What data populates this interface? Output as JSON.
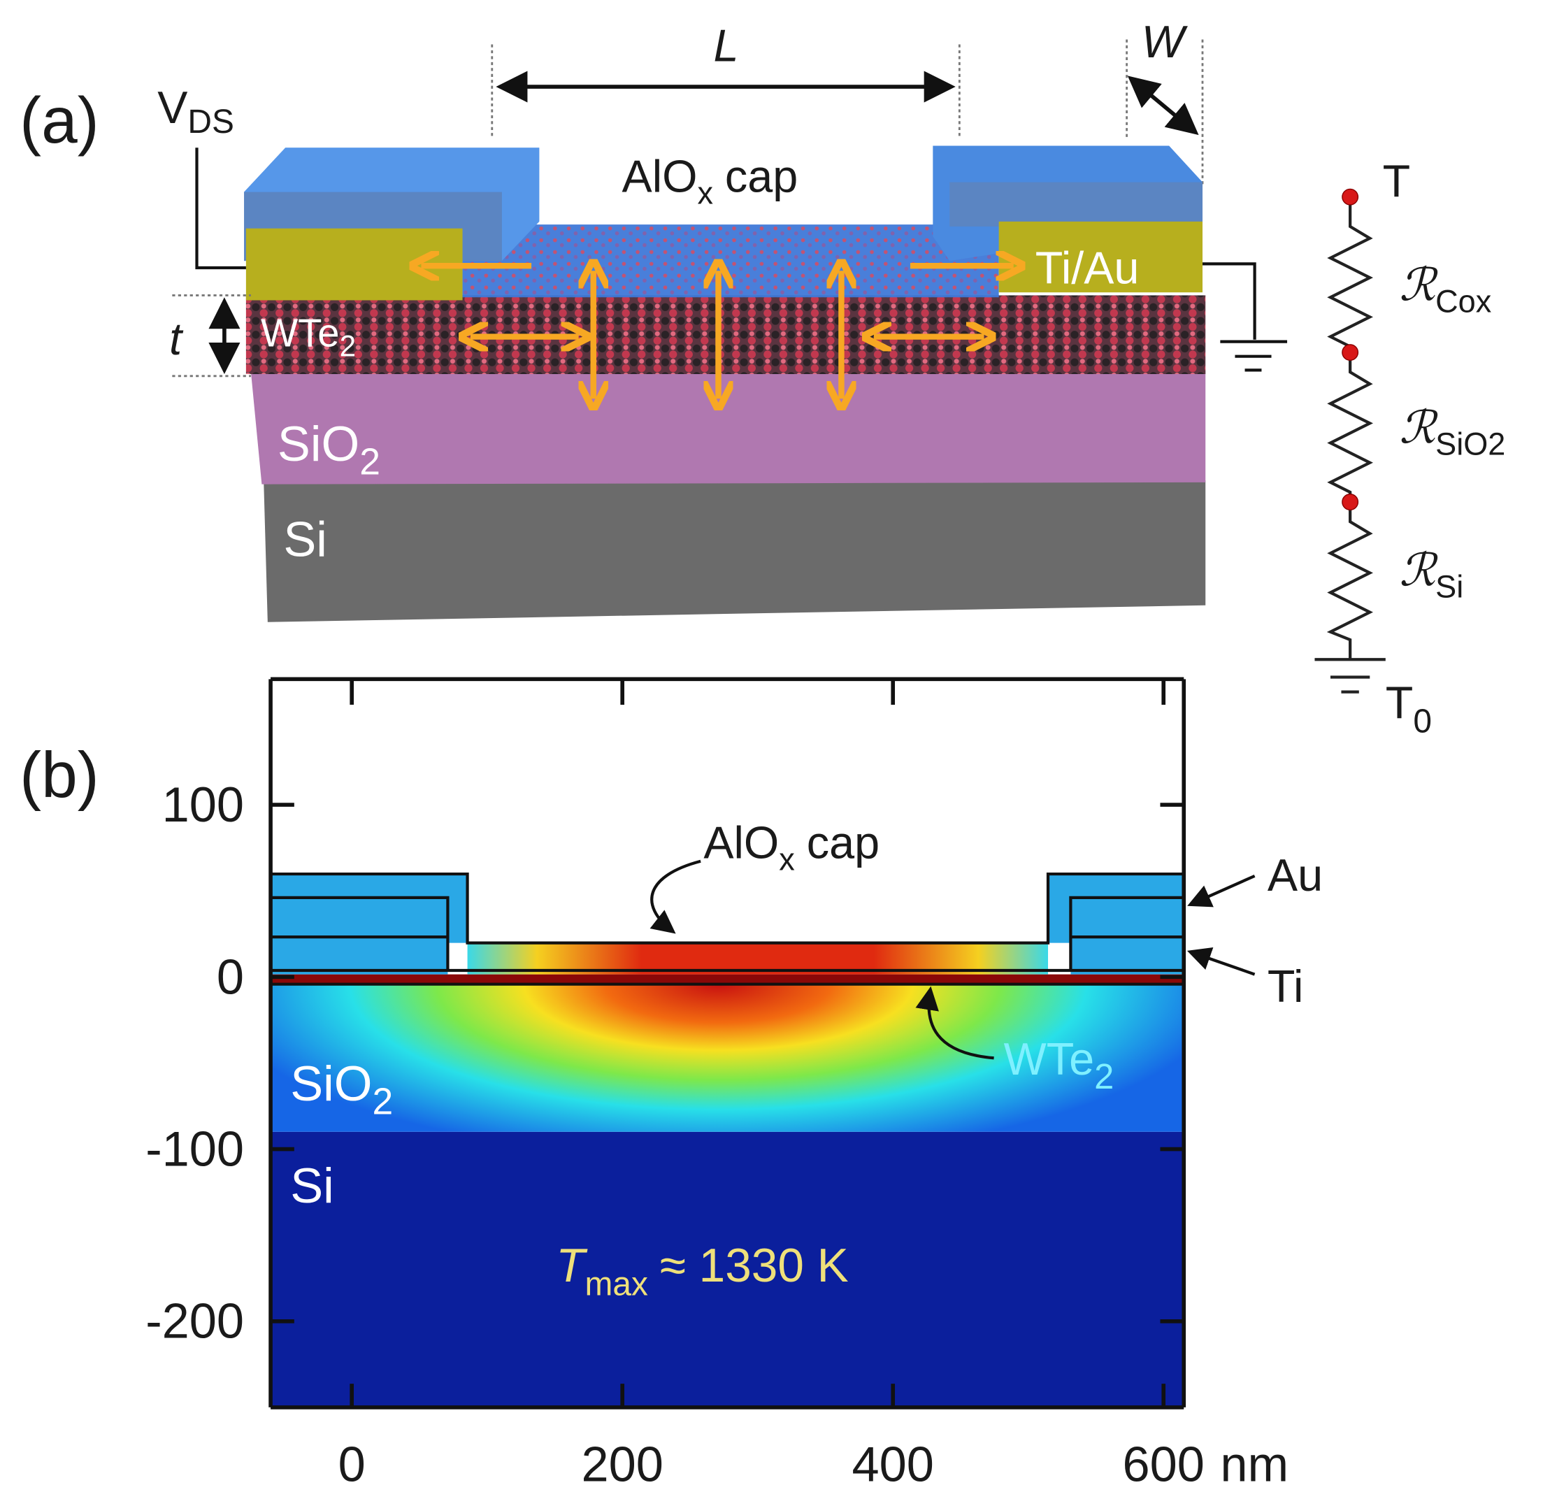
{
  "panel_a": {
    "label": "(a)",
    "vds": {
      "base": "V",
      "sub": "DS"
    },
    "length": "L",
    "width": "W",
    "cap": {
      "base": "AlO",
      "sub": "x",
      "tail": "cap"
    },
    "contact": "Ti/Au",
    "thickness": "t",
    "channel": {
      "base": "WTe",
      "sub": "2"
    },
    "oxide": {
      "base": "SiO",
      "sub": "2"
    },
    "substrate": "Si",
    "circuit": {
      "top": "T",
      "r_cox": {
        "base": "ℛ",
        "sub": "Cox"
      },
      "r_sio2": {
        "base": "ℛ",
        "sub": "SiO2"
      },
      "r_si": {
        "base": "ℛ",
        "sub": "Si"
      },
      "bottom": {
        "base": "T",
        "sub": "0"
      }
    }
  },
  "panel_b": {
    "label": "(b)",
    "xlim": [
      -60,
      615
    ],
    "ylim": [
      -250,
      173
    ],
    "xticks": [
      0,
      200,
      400,
      600
    ],
    "yticks": [
      100,
      0,
      -100,
      -200
    ],
    "x_unit": "nm",
    "cap": {
      "base": "AlO",
      "sub": "x",
      "tail": "cap"
    },
    "au": "Au",
    "ti": "Ti",
    "channel": {
      "base": "WTe",
      "sub": "2"
    },
    "oxide": {
      "base": "SiO",
      "sub": "2"
    },
    "substrate": "Si",
    "tmax": {
      "base": "T",
      "sub": "max",
      "tail": "≈ 1330 K"
    }
  }
}
